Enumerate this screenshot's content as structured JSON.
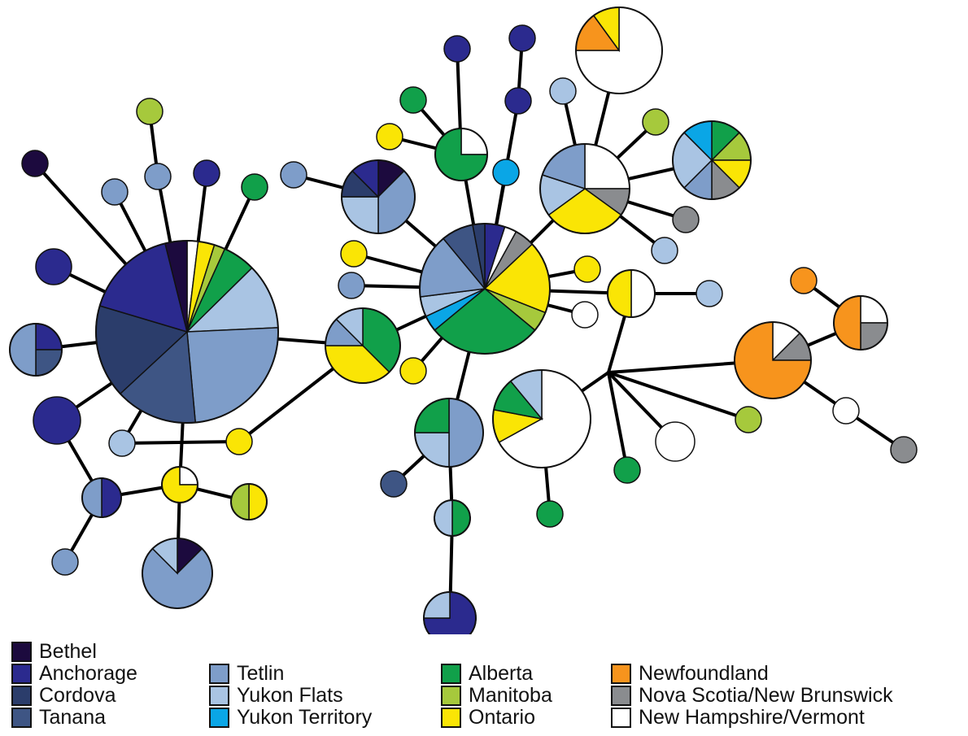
{
  "legend": {
    "col1": [
      {
        "label": "Bethel",
        "color": "#1c0a3e",
        "key": "bethel"
      },
      {
        "label": "Anchorage",
        "color": "#2b2a8e",
        "key": "anchorage"
      },
      {
        "label": "Cordova",
        "color": "#2b3d6b",
        "key": "cordova"
      },
      {
        "label": "Tanana",
        "color": "#3e5584",
        "key": "tanana"
      }
    ],
    "col2": [
      {
        "label": "Tetlin",
        "color": "#7e9dc9",
        "key": "tetlin"
      },
      {
        "label": "Yukon Flats",
        "color": "#a9c4e3",
        "key": "yukon_flats"
      },
      {
        "label": "Yukon Territory",
        "color": "#0aa6e6",
        "key": "yukon_territory"
      }
    ],
    "col3": [
      {
        "label": "Alberta",
        "color": "#11a04a",
        "key": "alberta"
      },
      {
        "label": "Manitoba",
        "color": "#a6c93c",
        "key": "manitoba"
      },
      {
        "label": "Ontario",
        "color": "#fae505",
        "key": "ontario"
      }
    ],
    "col4": [
      {
        "label": "Newfoundland",
        "color": "#f7941d",
        "key": "newfoundland"
      },
      {
        "label": "Nova Scotia/New Brunswick",
        "color": "#8a8c8f",
        "key": "ns_nb"
      },
      {
        "label": "New Hampshire/Vermont",
        "color": "#ffffff",
        "key": "nh_vt"
      }
    ]
  },
  "colors": {
    "bethel": "#1c0a3e",
    "anchorage": "#2b2a8e",
    "cordova": "#2b3d6b",
    "tanana": "#3e5584",
    "tetlin": "#7e9dc9",
    "yukon_flats": "#a9c4e3",
    "yukon_territory": "#0aa6e6",
    "alberta": "#11a04a",
    "manitoba": "#a6c93c",
    "ontario": "#fae505",
    "newfoundland": "#f7941d",
    "ns_nb": "#8a8c8f",
    "nh_vt": "#ffffff"
  },
  "haplotypes": [
    {
      "id": "h1",
      "composition": [
        [
          "nh_vt",
          0.02
        ],
        [
          "ontario",
          0.03
        ],
        [
          "manitoba",
          0.02
        ],
        [
          "alberta",
          0.06
        ],
        [
          "yukon_flats",
          0.12
        ],
        [
          "tetlin",
          0.25
        ],
        [
          "tanana",
          0.15
        ],
        [
          "cordova",
          0.17
        ],
        [
          "anchorage",
          0.17
        ],
        [
          "bethel",
          0.04
        ]
      ]
    },
    {
      "id": "h2",
      "composition": [
        [
          "anchorage",
          0.05
        ],
        [
          "nh_vt",
          0.03
        ],
        [
          "ns_nb",
          0.05
        ],
        [
          "ontario",
          0.18
        ],
        [
          "manitoba",
          0.05
        ],
        [
          "alberta",
          0.28
        ],
        [
          "yukon_territory",
          0.04
        ],
        [
          "yukon_flats",
          0.05
        ],
        [
          "tetlin",
          0.16
        ],
        [
          "tanana",
          0.08
        ],
        [
          "cordova",
          0.03
        ]
      ]
    },
    {
      "id": "h3",
      "composition": [
        [
          "alberta",
          0.375
        ],
        [
          "ontario",
          0.375
        ],
        [
          "tetlin",
          0.125
        ],
        [
          "yukon_flats",
          0.125
        ]
      ]
    },
    {
      "id": "h4",
      "composition": [
        [
          "bethel",
          0.125
        ],
        [
          "tetlin",
          0.375
        ],
        [
          "yukon_flats",
          0.25
        ],
        [
          "cordova",
          0.125
        ],
        [
          "anchorage",
          0.125
        ]
      ]
    },
    {
      "id": "h5",
      "composition": [
        [
          "nh_vt",
          0.25
        ],
        [
          "ns_nb",
          0.1
        ],
        [
          "ontario",
          0.3
        ],
        [
          "yukon_flats",
          0.15
        ],
        [
          "tetlin",
          0.2
        ]
      ]
    },
    {
      "id": "h6",
      "composition": [
        [
          "alberta",
          0.125
        ],
        [
          "manitoba",
          0.125
        ],
        [
          "ontario",
          0.125
        ],
        [
          "ns_nb",
          0.125
        ],
        [
          "tetlin",
          0.125
        ],
        [
          "yukon_flats",
          0.25
        ],
        [
          "yukon_territory",
          0.125
        ]
      ]
    },
    {
      "id": "h7",
      "composition": [
        [
          "nh_vt",
          0.75
        ],
        [
          "newfoundland",
          0.15
        ],
        [
          "ontario",
          0.1
        ]
      ]
    },
    {
      "id": "h8",
      "composition": [
        [
          "nh_vt",
          0.67
        ],
        [
          "ontario",
          0.11
        ],
        [
          "alberta",
          0.11
        ],
        [
          "yukon_flats",
          0.11
        ]
      ]
    },
    {
      "id": "h9",
      "composition": [
        [
          "nh_vt",
          0.125
        ],
        [
          "ns_nb",
          0.125
        ],
        [
          "newfoundland",
          0.75
        ]
      ]
    },
    {
      "id": "h10",
      "composition": [
        [
          "nh_vt",
          0.25
        ],
        [
          "ns_nb",
          0.25
        ],
        [
          "newfoundland",
          0.5
        ]
      ]
    },
    {
      "id": "h11",
      "composition": [
        [
          "tetlin",
          0.5
        ],
        [
          "yukon_flats",
          0.25
        ],
        [
          "alberta",
          0.25
        ]
      ]
    },
    {
      "id": "h12",
      "composition": [
        [
          "nh_vt",
          0.25
        ],
        [
          "alberta",
          0.75
        ]
      ]
    },
    {
      "id": "h13",
      "composition": [
        [
          "bethel",
          0.125
        ],
        [
          "tetlin",
          0.75
        ],
        [
          "yukon_flats",
          0.125
        ]
      ]
    },
    {
      "id": "h14",
      "composition": [
        [
          "nh_vt",
          0.5
        ],
        [
          "ontario",
          0.5
        ]
      ]
    },
    {
      "id": "h15",
      "composition": [
        [
          "anchorage",
          0.25
        ],
        [
          "tanana",
          0.25
        ],
        [
          "tetlin",
          0.5
        ]
      ]
    },
    {
      "id": "h16",
      "composition": [
        [
          "anchorage",
          0.5
        ],
        [
          "tetlin",
          0.5
        ]
      ]
    },
    {
      "id": "h17",
      "composition": [
        [
          "ontario",
          0.5
        ],
        [
          "manitoba",
          0.5
        ]
      ]
    },
    {
      "id": "h18",
      "composition": [
        [
          "alberta",
          0.5
        ],
        [
          "yukon_flats",
          0.5
        ]
      ]
    },
    {
      "id": "h19",
      "composition": [
        [
          "anchorage",
          0.75
        ],
        [
          "yukon_flats",
          0.25
        ]
      ]
    },
    {
      "id": "h20",
      "composition": [
        [
          "nh_vt",
          0.25
        ],
        [
          "ontario",
          0.75
        ]
      ]
    }
  ]
}
